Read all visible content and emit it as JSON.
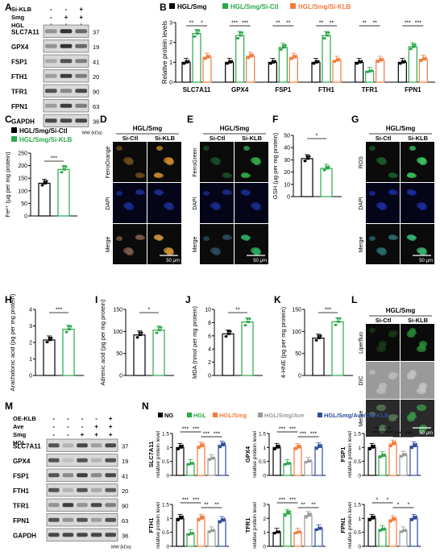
{
  "colors": {
    "black": "#000000",
    "green": "#2aa84a",
    "orange": "#f47a3c",
    "gray": "#9a9a9a",
    "blue": "#2e4e9c",
    "panel_dark": "#0a0a0a"
  },
  "labels": {
    "A": "A",
    "B": "B",
    "C": "C",
    "D": "D",
    "E": "E",
    "F": "F",
    "G": "G",
    "H": "H",
    "I": "I",
    "J": "J",
    "K": "K",
    "L": "L",
    "M": "M",
    "N": "N"
  },
  "panelA": {
    "conditions": [
      "Si-KLB",
      "Smg",
      "HGL"
    ],
    "signs": [
      [
        "-",
        "-",
        "+"
      ],
      [
        "-",
        "+",
        "+"
      ],
      [
        "+",
        "+",
        "+"
      ]
    ],
    "bands": [
      {
        "name": "SLC7A11",
        "kda": "37"
      },
      {
        "name": "GPX4",
        "kda": "19"
      },
      {
        "name": "FSP1",
        "kda": "41"
      },
      {
        "name": "FTH1",
        "kda": "20"
      },
      {
        "name": "TFR1",
        "kda": "90"
      },
      {
        "name": "FPN1",
        "kda": "63"
      },
      {
        "name": "GAPDH",
        "kda": "36"
      }
    ],
    "mw": "MW (kDa)"
  },
  "panelM": {
    "conditions": [
      "OE-KLB",
      "Ave",
      "Smg",
      "HGL"
    ],
    "signs": [
      [
        "-",
        "-",
        "-",
        "-",
        "+"
      ],
      [
        "-",
        "-",
        "-",
        "+",
        "+"
      ],
      [
        "-",
        "-",
        "+",
        "+",
        "+"
      ],
      [
        "-",
        "+",
        "+",
        "+",
        "+"
      ]
    ],
    "bands": [
      {
        "name": "SLC7A11",
        "kda": "37"
      },
      {
        "name": "GPX4",
        "kda": "19"
      },
      {
        "name": "FSP1",
        "kda": "41"
      },
      {
        "name": "FTH1",
        "kda": "20"
      },
      {
        "name": "TFR1",
        "kda": "90"
      },
      {
        "name": "FPN1",
        "kda": "63"
      },
      {
        "name": "GAPDH",
        "kda": "36"
      }
    ],
    "mw": "MW (kDa)"
  },
  "images": {
    "D": {
      "header": "HGL/Smg",
      "cols": [
        "Si-Ctl",
        "Si-KLB"
      ],
      "rows": [
        "FerroOrange",
        "DAPI",
        "Merge"
      ],
      "scale": "50 μm"
    },
    "E": {
      "header": "HGL/Smg",
      "cols": [
        "Si-Ctl",
        "Si-KLB"
      ],
      "rows": [
        "FerroGreen",
        "DAPI",
        "Merge"
      ],
      "scale": "50 μm"
    },
    "G": {
      "header": "HGL/Smg",
      "cols": [
        "Si-Ctl",
        "Si-KLB"
      ],
      "rows": [
        "ROS",
        "DAPI",
        "Merge"
      ],
      "scale": "50 μm"
    },
    "L": {
      "header": "HGL/Smg",
      "cols": [
        "Si-Ctl",
        "Si-KLB"
      ],
      "rows": [
        "Liperfluo",
        "DIC",
        "Merge"
      ],
      "scale": "50 μm"
    }
  },
  "chart_data": [
    {
      "id": "B",
      "type": "bar",
      "ylabel": "Relative protein levels",
      "ylim": [
        0,
        3
      ],
      "yticks": [
        0,
        1,
        2,
        3
      ],
      "categories": [
        "SLC7A11",
        "GPX4",
        "FSP1",
        "FTH1",
        "TFR1",
        "FPN1"
      ],
      "series": [
        {
          "name": "HGL/Smg",
          "color": "#000000",
          "values": [
            1.0,
            1.0,
            1.0,
            1.0,
            1.0,
            1.0
          ]
        },
        {
          "name": "HGL/Smg/Si-Ctl",
          "color": "#2aa84a",
          "values": [
            2.45,
            2.35,
            1.75,
            2.35,
            0.55,
            1.78
          ]
        },
        {
          "name": "HGL/Smg/Si-KLB",
          "color": "#f47a3c",
          "values": [
            1.25,
            1.3,
            1.25,
            1.1,
            1.1,
            1.15
          ]
        }
      ],
      "significance": [
        [
          "**",
          "*"
        ],
        [
          "***",
          "***"
        ],
        [
          "**",
          "**"
        ],
        [
          "**",
          "**"
        ],
        [
          "**",
          "**"
        ],
        [
          "***",
          "***"
        ]
      ]
    },
    {
      "id": "C",
      "type": "bar",
      "ylabel": "Fe²⁺ (μg per mg protein)",
      "ylim": [
        0,
        250
      ],
      "yticks": [
        0,
        50,
        100,
        150,
        200,
        250
      ],
      "series": [
        {
          "name": "HGL/Smg/Si-Ctl",
          "color": "#000000",
          "values": [
            130
          ]
        },
        {
          "name": "HGL/Smg/Si-KLB",
          "color": "#2aa84a",
          "values": [
            185
          ]
        }
      ],
      "significance": "***"
    },
    {
      "id": "F",
      "type": "bar",
      "ylabel": "GSH (μg per mg protein)",
      "ylim": [
        0,
        50
      ],
      "yticks": [
        0,
        10,
        20,
        30,
        40,
        50
      ],
      "series": [
        {
          "name": "Si-Ctl",
          "color": "#000000",
          "values": [
            31
          ]
        },
        {
          "name": "Si-KLB",
          "color": "#2aa84a",
          "values": [
            23
          ]
        }
      ],
      "significance": "*"
    },
    {
      "id": "H",
      "type": "bar",
      "ylabel": "Arachidonic acid (pg per mg protein)",
      "ylim": [
        0,
        4
      ],
      "yticks": [
        0,
        1,
        2,
        3,
        4
      ],
      "series": [
        {
          "name": "Si-Ctl",
          "color": "#000000",
          "values": [
            2.15
          ]
        },
        {
          "name": "Si-KLB",
          "color": "#2aa84a",
          "values": [
            2.8
          ]
        }
      ],
      "significance": "***"
    },
    {
      "id": "I",
      "type": "bar",
      "ylabel": "Adrenic acid (pg per mg protein)",
      "ylim": [
        0,
        150
      ],
      "yticks": [
        0,
        50,
        100,
        150
      ],
      "series": [
        {
          "name": "Si-Ctl",
          "color": "#000000",
          "values": [
            92
          ]
        },
        {
          "name": "Si-KLB",
          "color": "#2aa84a",
          "values": [
            103
          ]
        }
      ],
      "significance": "*"
    },
    {
      "id": "J",
      "type": "bar",
      "ylabel": "MDA (nmol per mg protein)",
      "ylim": [
        0,
        10
      ],
      "yticks": [
        0,
        2,
        4,
        6,
        8,
        10
      ],
      "series": [
        {
          "name": "Si-Ctl",
          "color": "#000000",
          "values": [
            6.3
          ]
        },
        {
          "name": "Si-KLB",
          "color": "#2aa84a",
          "values": [
            8.1
          ]
        }
      ],
      "significance": "**"
    },
    {
      "id": "K",
      "type": "bar",
      "ylabel": "4-HNE (pg per mg protein)",
      "ylim": [
        0,
        150
      ],
      "yticks": [
        0,
        50,
        100,
        150
      ],
      "series": [
        {
          "name": "Si-Ctl",
          "color": "#000000",
          "values": [
            85
          ]
        },
        {
          "name": "Si-KLB",
          "color": "#2aa84a",
          "values": [
            122
          ]
        }
      ],
      "significance": "***"
    },
    {
      "id": "N",
      "type": "bar",
      "legend": [
        "NG",
        "HGL",
        "HGL/Smg",
        "HGL/Smg/Ave",
        "HGL/Smg/Ave/OE-KLB"
      ],
      "legend_colors": [
        "#000000",
        "#2aa84a",
        "#f47a3c",
        "#9a9a9a",
        "#2e4e9c"
      ],
      "ylabel_suffix": "relative protein level",
      "subplots": [
        {
          "name": "SLC7A11",
          "ylim": [
            0,
            1.5
          ],
          "yticks": [
            0,
            0.5,
            1,
            1.5
          ],
          "values": [
            1.0,
            0.42,
            1.05,
            0.6,
            1.08
          ],
          "sig": [
            "***",
            "***",
            "***",
            "***"
          ]
        },
        {
          "name": "GPX4",
          "ylim": [
            0,
            1.5
          ],
          "yticks": [
            0,
            0.5,
            1,
            1.5
          ],
          "values": [
            1.0,
            0.42,
            1.0,
            0.5,
            1.02
          ],
          "sig": [
            "***",
            "***",
            "***",
            "***"
          ]
        },
        {
          "name": "FSP1",
          "ylim": [
            0,
            1.5
          ],
          "yticks": [
            0,
            0.5,
            1,
            1.5
          ],
          "values": [
            1.0,
            0.7,
            1.12,
            0.72,
            1.05
          ],
          "sig": [
            "**",
            "***",
            "***",
            "***"
          ]
        },
        {
          "name": "FTH1",
          "ylim": [
            0,
            1.5
          ],
          "yticks": [
            0,
            0.5,
            1,
            1.5
          ],
          "values": [
            1.0,
            0.45,
            1.0,
            0.55,
            0.92
          ],
          "sig": [
            "***",
            "***",
            "**",
            "**"
          ]
        },
        {
          "name": "TFR1",
          "ylim": [
            0,
            3
          ],
          "yticks": [
            0,
            1,
            2,
            3
          ],
          "values": [
            1.0,
            2.35,
            1.0,
            2.2,
            1.25
          ],
          "sig": [
            "***",
            "***",
            "**",
            "**"
          ]
        },
        {
          "name": "FPN1",
          "ylim": [
            0,
            1.5
          ],
          "yticks": [
            0,
            0.5,
            1,
            1.5
          ],
          "values": [
            1.0,
            0.6,
            0.95,
            0.55,
            1.0
          ],
          "sig": [
            "*",
            "*",
            "*",
            "*"
          ]
        }
      ]
    }
  ],
  "legendB": [
    "HGL/Smg",
    "HGL/Smg/Si-Ctl",
    "HGL/Smg/Si-KLB"
  ],
  "legendC": [
    "HGL/Smg/Si-Ctl",
    "HGL/Smg/Si-KLB"
  ]
}
